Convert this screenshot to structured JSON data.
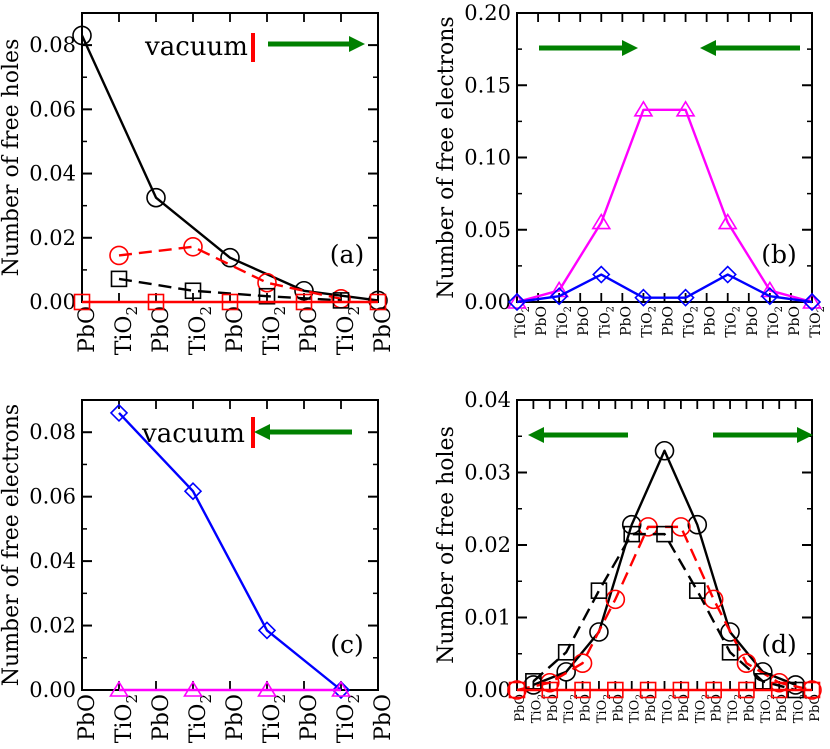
{
  "chart_data": [
    {
      "panel": "(a)",
      "type": "line",
      "ylabel": "Number of free holes",
      "categories": [
        "PbO",
        "TiO2",
        "PbO",
        "TiO2",
        "PbO",
        "TiO2",
        "PbO",
        "TiO2",
        "PbO"
      ],
      "yticks": [
        "0.00",
        "0.02",
        "0.04",
        "0.06",
        "0.08"
      ],
      "ylim": [
        0,
        0.09
      ],
      "annotation": "vacuum",
      "arrows": [
        "right"
      ],
      "series": [
        {
          "marker": "circle",
          "color": "#000000",
          "dash": "solid",
          "x": [
            0,
            2,
            4,
            6,
            8
          ],
          "values": [
            0.083,
            0.0325,
            0.0138,
            0.0035,
            0.0005
          ]
        },
        {
          "marker": "circle",
          "color": "#ff0000",
          "dash": "dashed",
          "x": [
            1,
            3,
            5,
            7
          ],
          "values": [
            0.0145,
            0.0172,
            0.006,
            0.001
          ]
        },
        {
          "marker": "square",
          "color": "#000000",
          "dash": "dashed",
          "x": [
            1,
            3,
            5,
            7
          ],
          "values": [
            0.0072,
            0.0035,
            0.0018,
            0.0005
          ]
        },
        {
          "marker": "square",
          "color": "#ff0000",
          "dash": "solid",
          "x": [
            0,
            2,
            4,
            6,
            8
          ],
          "values": [
            0.0,
            0.0,
            0.0,
            0.0,
            0.0
          ]
        }
      ]
    },
    {
      "panel": "(b)",
      "type": "line",
      "ylabel": "Number of free electrons",
      "categories": [
        "TiO2",
        "PbO",
        "TiO2",
        "PbO",
        "TiO2",
        "PbO",
        "TiO2",
        "PbO",
        "TiO2",
        "PbO",
        "TiO2",
        "PbO",
        "TiO2",
        "PbO",
        "TiO2"
      ],
      "yticks": [
        "0.00",
        "0.05",
        "0.10",
        "0.15",
        "0.20"
      ],
      "ylim": [
        0,
        0.2
      ],
      "arrows": [
        "right",
        "left"
      ],
      "series": [
        {
          "marker": "triangle",
          "color": "#ff00ff",
          "dash": "solid",
          "x": [
            0,
            2,
            4,
            6,
            8,
            10,
            12,
            14
          ],
          "values": [
            0.0,
            0.008,
            0.055,
            0.133,
            0.133,
            0.055,
            0.008,
            0.0
          ]
        },
        {
          "marker": "diamond",
          "color": "#0000ff",
          "dash": "solid",
          "x": [
            0,
            2,
            4,
            6,
            8,
            10,
            12,
            14
          ],
          "values": [
            0.0,
            0.004,
            0.019,
            0.003,
            0.003,
            0.019,
            0.004,
            0.0
          ]
        }
      ]
    },
    {
      "panel": "(c)",
      "type": "line",
      "ylabel": "Number of free electrons",
      "categories": [
        "PbO",
        "TiO2",
        "PbO",
        "TiO2",
        "PbO",
        "TiO2",
        "PbO",
        "TiO2",
        "PbO"
      ],
      "yticks": [
        "0.00",
        "0.02",
        "0.04",
        "0.06",
        "0.08"
      ],
      "ylim": [
        0,
        0.09
      ],
      "annotation": "vacuum",
      "arrows": [
        "left"
      ],
      "series": [
        {
          "marker": "diamond",
          "color": "#0000ff",
          "dash": "solid",
          "x": [
            1,
            3,
            5,
            7
          ],
          "values": [
            0.086,
            0.0617,
            0.0185,
            0.0
          ]
        },
        {
          "marker": "triangle",
          "color": "#ff00ff",
          "dash": "solid",
          "x": [
            1,
            3,
            5,
            7
          ],
          "values": [
            0.0,
            0.0,
            0.0,
            0.0
          ]
        }
      ]
    },
    {
      "panel": "(d)",
      "type": "line",
      "ylabel": "Number of free holes",
      "categories": [
        "PbO",
        "TiO2",
        "PbO",
        "TiO2",
        "PbO",
        "TiO2",
        "PbO",
        "TiO2",
        "PbO",
        "TiO2",
        "PbO",
        "TiO2",
        "PbO",
        "TiO2",
        "PbO",
        "TiO2",
        "PbO",
        "TiO2",
        "PbO"
      ],
      "yticks": [
        "0.00",
        "0.01",
        "0.02",
        "0.03",
        "0.04"
      ],
      "ylim": [
        0,
        0.04
      ],
      "arrows": [
        "left",
        "right"
      ],
      "series": [
        {
          "marker": "circle",
          "color": "#000000",
          "dash": "solid",
          "x": [
            1,
            3,
            5,
            7,
            9,
            11,
            13,
            15,
            17
          ],
          "values": [
            0.0007,
            0.0025,
            0.008,
            0.0228,
            0.033,
            0.0228,
            0.008,
            0.0025,
            0.0007
          ]
        },
        {
          "marker": "circle",
          "color": "#ff0000",
          "dash": "dashed",
          "x": [
            0,
            2,
            4,
            6,
            8,
            10,
            12,
            14,
            16,
            18
          ],
          "values": [
            0.0,
            0.001,
            0.0037,
            0.0125,
            0.0225,
            0.0225,
            0.0125,
            0.0037,
            0.001,
            0.0
          ]
        },
        {
          "marker": "square",
          "color": "#000000",
          "dash": "dashed",
          "x": [
            1,
            3,
            5,
            7,
            9,
            11,
            13,
            15,
            17
          ],
          "values": [
            0.0012,
            0.0052,
            0.0137,
            0.0215,
            0.0215,
            0.0137,
            0.0052,
            0.0012,
            0.0
          ]
        },
        {
          "marker": "square",
          "color": "#ff0000",
          "dash": "solid",
          "x": [
            0,
            2,
            4,
            6,
            8,
            10,
            12,
            14,
            16,
            18
          ],
          "values": [
            0.0,
            0.0,
            0.0,
            0.0,
            0.0,
            0.0,
            0.0,
            0.0,
            0.0,
            0.0
          ]
        }
      ]
    }
  ]
}
